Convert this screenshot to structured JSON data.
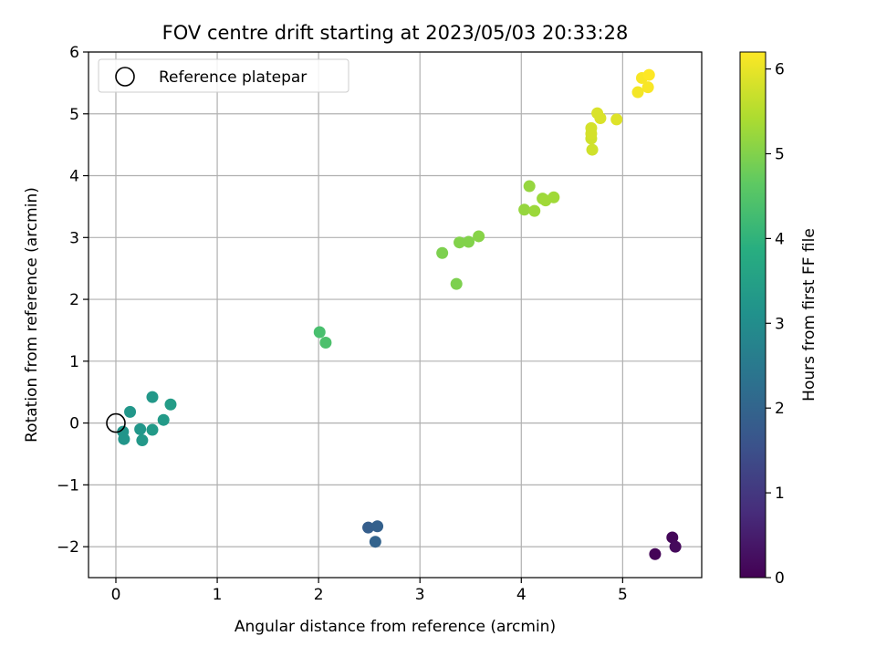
{
  "chart_data": {
    "type": "scatter",
    "title": "FOV centre drift starting at 2023/05/03 20:33:28",
    "xlabel": "Angular distance from reference (arcmin)",
    "ylabel": "Rotation from reference (arcmin)",
    "xlim": [
      -0.27,
      5.78
    ],
    "ylim": [
      -2.5,
      6.0
    ],
    "xticks": [
      0,
      1,
      2,
      3,
      4,
      5
    ],
    "xtick_labels": [
      "0",
      "1",
      "2",
      "3",
      "4",
      "5"
    ],
    "yticks": [
      -2,
      -1,
      0,
      1,
      2,
      3,
      4,
      5,
      6
    ],
    "ytick_labels": [
      "−2",
      "−1",
      "0",
      "1",
      "2",
      "3",
      "4",
      "5",
      "6"
    ],
    "grid": true,
    "legend": {
      "position": "top-left",
      "entries": [
        "Reference platepar"
      ]
    },
    "reference_point": {
      "x": 0.0,
      "y": 0.0
    },
    "colorbar": {
      "label": "Hours from first FF file",
      "range": [
        0,
        6.2
      ],
      "ticks": [
        0,
        1,
        2,
        3,
        4,
        5,
        6
      ],
      "tick_labels": [
        "0",
        "1",
        "2",
        "3",
        "4",
        "5",
        "6"
      ],
      "colormap": "viridis"
    },
    "points": [
      {
        "x": 5.32,
        "y": -2.12,
        "t": 0.05
      },
      {
        "x": 5.49,
        "y": -1.85,
        "t": 0.1
      },
      {
        "x": 5.52,
        "y": -2.0,
        "t": 0.15
      },
      {
        "x": 2.49,
        "y": -1.69,
        "t": 1.85
      },
      {
        "x": 2.58,
        "y": -1.67,
        "t": 1.9
      },
      {
        "x": 2.56,
        "y": -1.92,
        "t": 1.95
      },
      {
        "x": 0.07,
        "y": -0.14,
        "t": 3.2
      },
      {
        "x": 0.08,
        "y": -0.26,
        "t": 3.2
      },
      {
        "x": 0.14,
        "y": 0.18,
        "t": 3.25
      },
      {
        "x": 0.24,
        "y": -0.1,
        "t": 3.25
      },
      {
        "x": 0.26,
        "y": -0.28,
        "t": 3.3
      },
      {
        "x": 0.36,
        "y": 0.42,
        "t": 3.3
      },
      {
        "x": 0.36,
        "y": -0.11,
        "t": 3.35
      },
      {
        "x": 0.47,
        "y": 0.05,
        "t": 3.35
      },
      {
        "x": 0.54,
        "y": 0.3,
        "t": 3.4
      },
      {
        "x": 2.01,
        "y": 1.47,
        "t": 4.35
      },
      {
        "x": 2.07,
        "y": 1.3,
        "t": 4.4
      },
      {
        "x": 3.22,
        "y": 2.75,
        "t": 4.95
      },
      {
        "x": 3.36,
        "y": 2.25,
        "t": 4.95
      },
      {
        "x": 3.39,
        "y": 2.92,
        "t": 5.0
      },
      {
        "x": 3.48,
        "y": 2.93,
        "t": 5.0
      },
      {
        "x": 3.58,
        "y": 3.02,
        "t": 5.05
      },
      {
        "x": 4.03,
        "y": 3.45,
        "t": 5.2
      },
      {
        "x": 4.08,
        "y": 3.83,
        "t": 5.2
      },
      {
        "x": 4.13,
        "y": 3.43,
        "t": 5.25
      },
      {
        "x": 4.21,
        "y": 3.63,
        "t": 5.25
      },
      {
        "x": 4.24,
        "y": 3.6,
        "t": 5.3
      },
      {
        "x": 4.32,
        "y": 3.65,
        "t": 5.3
      },
      {
        "x": 4.7,
        "y": 4.42,
        "t": 5.75
      },
      {
        "x": 4.69,
        "y": 4.6,
        "t": 5.75
      },
      {
        "x": 4.69,
        "y": 4.68,
        "t": 5.8
      },
      {
        "x": 4.69,
        "y": 4.77,
        "t": 5.8
      },
      {
        "x": 4.75,
        "y": 5.01,
        "t": 5.85
      },
      {
        "x": 4.78,
        "y": 4.93,
        "t": 5.85
      },
      {
        "x": 4.94,
        "y": 4.91,
        "t": 5.9
      },
      {
        "x": 5.15,
        "y": 5.35,
        "t": 6.1
      },
      {
        "x": 5.19,
        "y": 5.58,
        "t": 6.15
      },
      {
        "x": 5.25,
        "y": 5.43,
        "t": 6.15
      },
      {
        "x": 5.26,
        "y": 5.63,
        "t": 6.2
      }
    ]
  }
}
